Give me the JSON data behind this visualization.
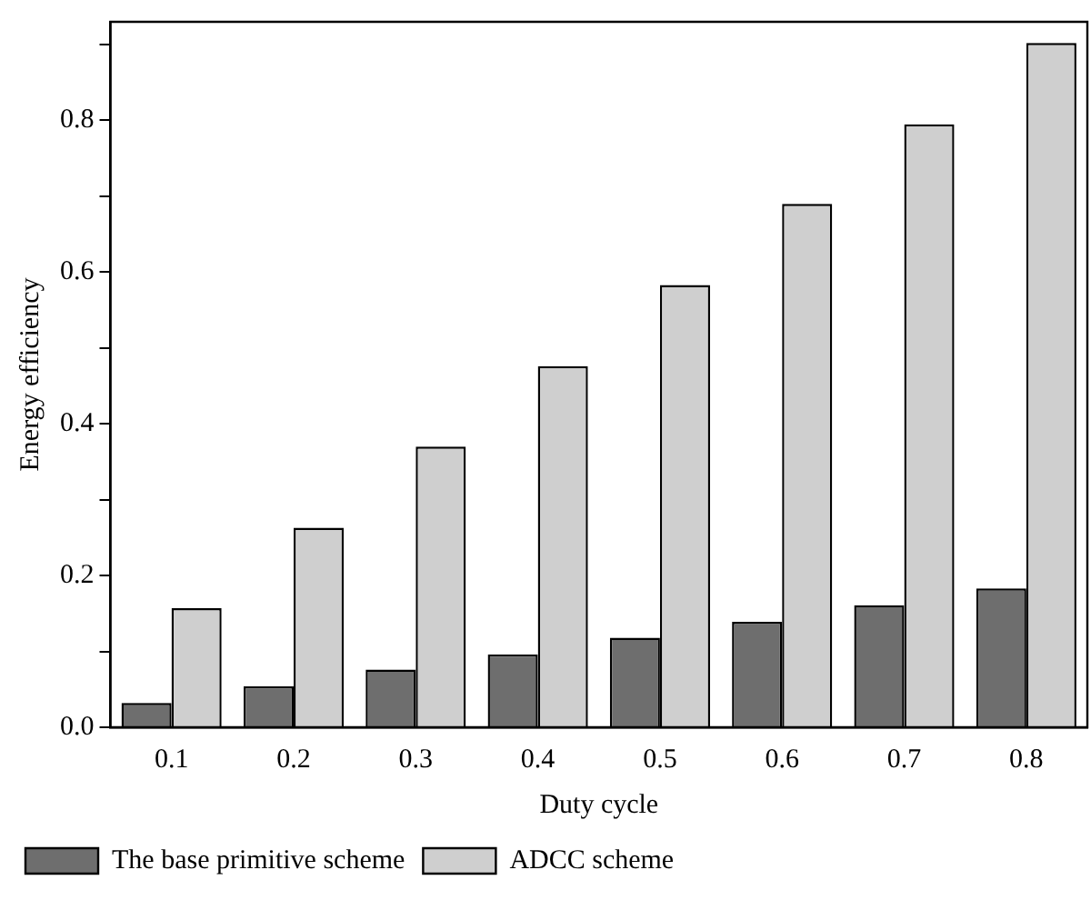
{
  "chart_data": {
    "type": "bar",
    "xlabel": "Duty cycle",
    "ylabel": "Energy efficiency",
    "categories": [
      "0.1",
      "0.2",
      "0.3",
      "0.4",
      "0.5",
      "0.6",
      "0.7",
      "0.8"
    ],
    "series": [
      {
        "name": "The base primitive scheme",
        "color": "#6e6e6e",
        "values": [
          0.032,
          0.054,
          0.076,
          0.096,
          0.118,
          0.139,
          0.161,
          0.183
        ]
      },
      {
        "name": "ADCC scheme",
        "color": "#cfcfcf",
        "values": [
          0.157,
          0.263,
          0.37,
          0.476,
          0.583,
          0.69,
          0.795,
          0.902
        ]
      }
    ],
    "ylim": [
      0,
      0.93
    ],
    "yticks": [
      {
        "value": 0,
        "label": "0.0"
      },
      {
        "value": 0.1,
        "label": null
      },
      {
        "value": 0.2,
        "label": "0.2"
      },
      {
        "value": 0.3,
        "label": null
      },
      {
        "value": 0.4,
        "label": "0.4"
      },
      {
        "value": 0.5,
        "label": null
      },
      {
        "value": 0.6,
        "label": "0.6"
      },
      {
        "value": 0.7,
        "label": null
      },
      {
        "value": 0.8,
        "label": "0.8"
      },
      {
        "value": 0.9,
        "label": null
      }
    ],
    "grid": false,
    "legend": "bottom left"
  }
}
